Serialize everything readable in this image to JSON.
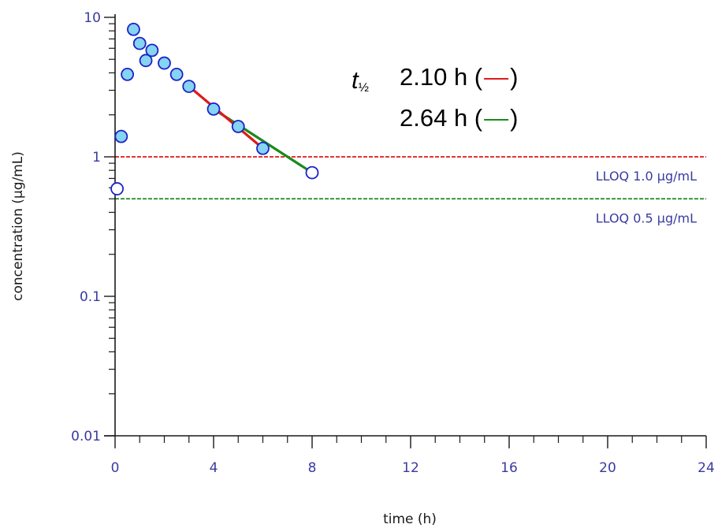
{
  "chart_data": {
    "type": "scatter",
    "xlabel": "time (h)",
    "ylabel": "concentration (µg/mL)",
    "xlim": [
      0,
      24
    ],
    "ylim": [
      0.01,
      10
    ],
    "y_scale": "log",
    "grid": false,
    "x_ticks": [
      {
        "value": 0,
        "label": "0"
      },
      {
        "value": 4,
        "label": "4"
      },
      {
        "value": 8,
        "label": "8"
      },
      {
        "value": 12,
        "label": "12"
      },
      {
        "value": 16,
        "label": "16"
      },
      {
        "value": 20,
        "label": "20"
      },
      {
        "value": 24,
        "label": "24"
      }
    ],
    "y_ticks": [
      {
        "value": 10,
        "label": "10"
      },
      {
        "value": 1,
        "label": "1"
      },
      {
        "value": 0.1,
        "label": "0.1"
      },
      {
        "value": 0.01,
        "label": "0.01"
      }
    ],
    "points_filled": [
      {
        "x": 0.25,
        "y": 1.4
      },
      {
        "x": 0.5,
        "y": 3.9
      },
      {
        "x": 0.75,
        "y": 8.2
      },
      {
        "x": 1.0,
        "y": 6.5
      },
      {
        "x": 1.25,
        "y": 4.9
      },
      {
        "x": 1.5,
        "y": 5.8
      },
      {
        "x": 2.0,
        "y": 4.7
      },
      {
        "x": 2.5,
        "y": 3.9
      },
      {
        "x": 3.0,
        "y": 3.2
      },
      {
        "x": 4.0,
        "y": 2.2
      },
      {
        "x": 5.0,
        "y": 1.65
      },
      {
        "x": 6.0,
        "y": 1.15
      }
    ],
    "points_open": [
      {
        "x": 0.083,
        "y": 0.59
      },
      {
        "x": 8.0,
        "y": 0.77
      }
    ],
    "fit_lines": [
      {
        "color": "#dd1a1a",
        "x": [
          3.0,
          6.0
        ],
        "y": [
          3.2,
          1.15
        ]
      },
      {
        "color": "#1a8a1a",
        "x": [
          4.0,
          8.0
        ],
        "y": [
          2.2,
          0.77
        ]
      }
    ],
    "reference_lines": [
      {
        "y": 1.0,
        "color": "#dd1a1a",
        "label": "LLOQ 1.0 µg/mL"
      },
      {
        "y": 0.5,
        "color": "#1a8a1a",
        "label": "LLOQ 0.5 µg/mL"
      }
    ],
    "annotation": {
      "symbol": "t",
      "subscript": "½",
      "rows": [
        {
          "value": "2.10 h (",
          "swatch_color": "#dd1a1a",
          "close": ")"
        },
        {
          "value": "2.64 h (",
          "swatch_color": "#1a8a1a",
          "close": ")"
        }
      ]
    }
  }
}
